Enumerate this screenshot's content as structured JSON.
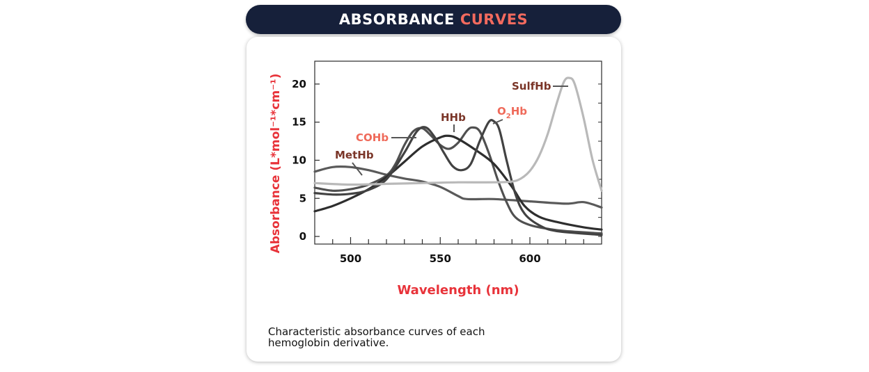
{
  "header": {
    "title_main": "ABSORBANCE",
    "title_accent": "CURVES"
  },
  "caption": "Characteristic absorbance curves of each hemoglobin derivative.",
  "colors": {
    "header_bg": "#16203a",
    "accent": "#f26a5e",
    "axis_label": "#e8333a",
    "series_label_dark": "#7a3528",
    "series_label_light": "#ef6a5a"
  },
  "chart_data": {
    "type": "line",
    "xlabel": "Wavelength (nm)",
    "ylabel": "Absorbance (L*mol⁻¹*cm⁻¹)",
    "xlim": [
      480,
      640
    ],
    "ylim": [
      -1,
      23
    ],
    "x_ticks": [
      500,
      550,
      600
    ],
    "y_ticks": [
      0,
      5,
      10,
      15,
      20
    ],
    "grid": false,
    "legend": "inline-labels",
    "series": [
      {
        "name": "MetHb",
        "color": "#5a5a5a",
        "points": [
          [
            480,
            8.5
          ],
          [
            490,
            9.1
          ],
          [
            500,
            9.1
          ],
          [
            510,
            8.7
          ],
          [
            520,
            8.1
          ],
          [
            530,
            7.6
          ],
          [
            540,
            7.2
          ],
          [
            550,
            6.5
          ],
          [
            560,
            5.3
          ],
          [
            565,
            4.9
          ],
          [
            580,
            4.9
          ],
          [
            600,
            4.6
          ],
          [
            620,
            4.3
          ],
          [
            630,
            4.5
          ],
          [
            640,
            3.8
          ]
        ]
      },
      {
        "name": "COHb",
        "color": "#505050",
        "points": [
          [
            480,
            6.4
          ],
          [
            490,
            6.0
          ],
          [
            500,
            6.2
          ],
          [
            510,
            6.8
          ],
          [
            520,
            8.0
          ],
          [
            525,
            9.5
          ],
          [
            530,
            12.0
          ],
          [
            535,
            13.8
          ],
          [
            540,
            14.2
          ],
          [
            545,
            13.2
          ],
          [
            550,
            12.0
          ],
          [
            555,
            11.5
          ],
          [
            560,
            12.3
          ],
          [
            565,
            13.9
          ],
          [
            568,
            14.3
          ],
          [
            572,
            13.8
          ],
          [
            577,
            11.0
          ],
          [
            582,
            7.5
          ],
          [
            587,
            4.5
          ],
          [
            592,
            2.5
          ],
          [
            600,
            1.5
          ],
          [
            610,
            1.0
          ],
          [
            620,
            0.7
          ],
          [
            640,
            0.4
          ]
        ]
      },
      {
        "name": "HHb",
        "color": "#2e2e2e",
        "points": [
          [
            480,
            3.3
          ],
          [
            490,
            4.0
          ],
          [
            500,
            5.0
          ],
          [
            510,
            6.2
          ],
          [
            520,
            7.8
          ],
          [
            530,
            9.8
          ],
          [
            540,
            11.8
          ],
          [
            550,
            13.0
          ],
          [
            555,
            13.2
          ],
          [
            560,
            12.8
          ],
          [
            570,
            11.3
          ],
          [
            580,
            9.5
          ],
          [
            590,
            6.5
          ],
          [
            597,
            4.0
          ],
          [
            605,
            2.6
          ],
          [
            615,
            1.9
          ],
          [
            630,
            1.2
          ],
          [
            640,
            0.9
          ]
        ]
      },
      {
        "name": "O2Hb",
        "color": "#424242",
        "points": [
          [
            480,
            5.7
          ],
          [
            490,
            5.5
          ],
          [
            500,
            5.6
          ],
          [
            510,
            6.1
          ],
          [
            520,
            7.5
          ],
          [
            530,
            11.0
          ],
          [
            537,
            13.8
          ],
          [
            542,
            14.3
          ],
          [
            547,
            13.0
          ],
          [
            552,
            11.0
          ],
          [
            557,
            9.2
          ],
          [
            562,
            8.7
          ],
          [
            567,
            9.5
          ],
          [
            572,
            12.5
          ],
          [
            577,
            15.0
          ],
          [
            580,
            15.1
          ],
          [
            583,
            14.0
          ],
          [
            587,
            10.0
          ],
          [
            592,
            5.5
          ],
          [
            597,
            3.0
          ],
          [
            605,
            1.5
          ],
          [
            615,
            0.7
          ],
          [
            640,
            0.2
          ]
        ]
      },
      {
        "name": "SulfHb",
        "color": "#b9b9b9",
        "points": [
          [
            480,
            7.0
          ],
          [
            500,
            6.8
          ],
          [
            520,
            6.9
          ],
          [
            540,
            7.0
          ],
          [
            560,
            7.1
          ],
          [
            580,
            7.1
          ],
          [
            590,
            7.2
          ],
          [
            595,
            7.6
          ],
          [
            600,
            8.6
          ],
          [
            605,
            10.5
          ],
          [
            610,
            13.5
          ],
          [
            615,
            17.5
          ],
          [
            619,
            20.3
          ],
          [
            622,
            20.8
          ],
          [
            625,
            20.0
          ],
          [
            630,
            15.5
          ],
          [
            635,
            10.0
          ],
          [
            640,
            6.0
          ]
        ]
      }
    ],
    "annotations": [
      {
        "text": "MetHb",
        "series": "MetHb"
      },
      {
        "text": "COHb",
        "series": "COHb"
      },
      {
        "text": "HHb",
        "series": "HHb"
      },
      {
        "text": "O",
        "sub": "2",
        "rest": "Hb",
        "series": "O2Hb"
      },
      {
        "text": "SulfHb",
        "series": "SulfHb"
      }
    ]
  }
}
